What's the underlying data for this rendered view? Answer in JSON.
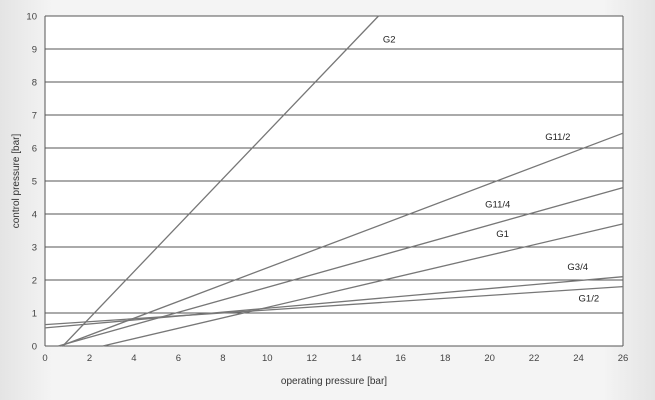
{
  "chart_data": {
    "type": "line",
    "xlabel": "operating pressure [bar]",
    "ylabel": "control pressure [bar]",
    "xlim": [
      0,
      26
    ],
    "ylim": [
      0,
      10
    ],
    "xticks": [
      0,
      2,
      4,
      6,
      8,
      10,
      12,
      14,
      16,
      18,
      20,
      22,
      24,
      26
    ],
    "yticks": [
      0,
      1,
      2,
      3,
      4,
      5,
      6,
      7,
      8,
      9,
      10
    ],
    "grid": "horizontal",
    "series": [
      {
        "name": "G2",
        "x": [
          0.8,
          15.0
        ],
        "y": [
          0.0,
          10.0
        ]
      },
      {
        "name": "G11/2",
        "x": [
          0.7,
          26.0
        ],
        "y": [
          0.0,
          6.45
        ]
      },
      {
        "name": "G11/4",
        "x": [
          0.6,
          26.0
        ],
        "y": [
          0.0,
          4.8
        ]
      },
      {
        "name": "G1",
        "x": [
          2.6,
          26.0
        ],
        "y": [
          0.0,
          3.7
        ]
      },
      {
        "name": "G3/4",
        "x": [
          0.0,
          26.0
        ],
        "y": [
          0.55,
          2.1
        ]
      },
      {
        "name": "G1/2",
        "x": [
          0.0,
          26.0
        ],
        "y": [
          0.65,
          1.8
        ]
      }
    ],
    "labels": [
      {
        "text": "G2",
        "x": 15.2,
        "y": 9.2
      },
      {
        "text": "G11/2",
        "x": 22.5,
        "y": 6.25
      },
      {
        "text": "G11/4",
        "x": 19.8,
        "y": 4.2
      },
      {
        "text": "G1",
        "x": 20.3,
        "y": 3.3
      },
      {
        "text": "G3/4",
        "x": 23.5,
        "y": 2.3
      },
      {
        "text": "G1/2",
        "x": 24.0,
        "y": 1.35
      }
    ]
  }
}
